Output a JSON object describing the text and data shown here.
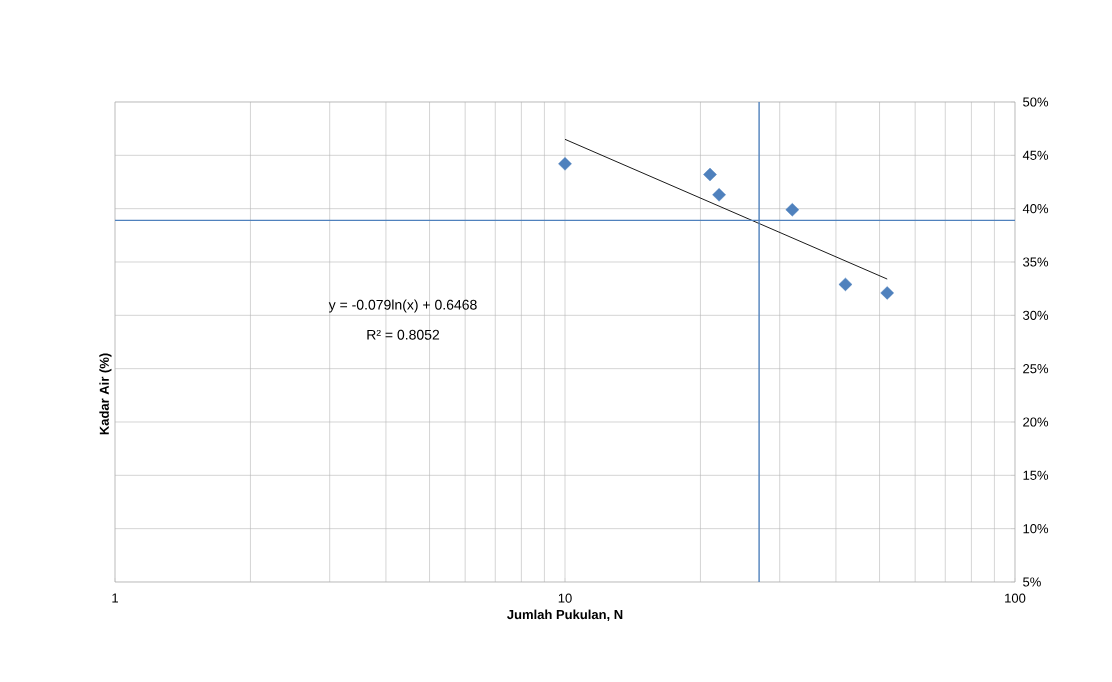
{
  "chart_data": {
    "type": "scatter",
    "xlabel": "Jumlah Pukulan, N",
    "ylabel": "Kadar Air (%)",
    "log": "x",
    "grid": true,
    "marker": "diamond",
    "xlim": [
      1,
      100
    ],
    "xticks": [
      1,
      10,
      100
    ],
    "ylim": [
      5,
      50
    ],
    "yticks": [
      {
        "value": 5,
        "label": "5%"
      },
      {
        "value": 10,
        "label": "10%"
      },
      {
        "value": 15,
        "label": "15%"
      },
      {
        "value": 20,
        "label": "20%"
      },
      {
        "value": 25,
        "label": "25%"
      },
      {
        "value": 30,
        "label": "30%"
      },
      {
        "value": 35,
        "label": "35%"
      },
      {
        "value": 40,
        "label": "40%"
      },
      {
        "value": 45,
        "label": "45%"
      },
      {
        "value": 50,
        "label": "50%"
      }
    ],
    "series": [
      {
        "color": "#4f81bd",
        "x": [
          10,
          21,
          22,
          32,
          42,
          52
        ],
        "values": [
          44.2,
          43.2,
          41.3,
          39.9,
          32.9,
          32.1
        ]
      },
      {
        "type": "line",
        "color": "#000000",
        "marker": "none",
        "x": [
          10,
          52
        ],
        "values": [
          46.5,
          33.4
        ]
      }
    ],
    "ref_lines": [
      {
        "axis": "x",
        "value": 27,
        "color": "#4f81bd"
      },
      {
        "axis": "y",
        "value": 38.9,
        "color": "#4f81bd"
      }
    ],
    "annotations": [
      "y = -0.079ln(x) + 0.6468",
      "R² = 0.8052"
    ]
  }
}
